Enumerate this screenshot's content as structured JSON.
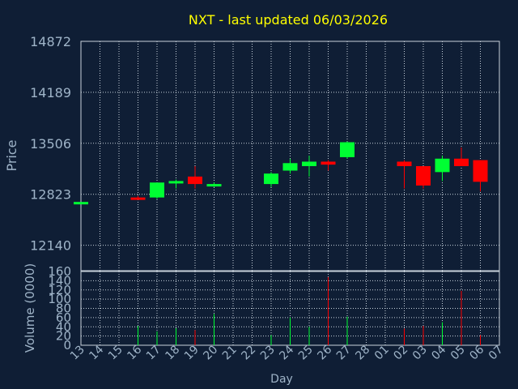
{
  "title": "NXT - last updated 06/03/2026",
  "colors": {
    "background": "#0f1e35",
    "text": "#9fb4c8",
    "title": "#ffff00",
    "grid": "#c8d2dc",
    "up": "#00ff33",
    "down": "#ff0000"
  },
  "chart_data": [
    {
      "type": "candlestick",
      "title": "NXT - last updated 06/03/2026",
      "ylabel": "Price",
      "ylim": [
        11799,
        14872
      ],
      "ytick_values": [
        12140,
        12823,
        13506,
        14189,
        14872
      ],
      "grid": true,
      "categories": [
        "13",
        "14",
        "15",
        "16",
        "17",
        "18",
        "19",
        "20",
        "21",
        "22",
        "23",
        "24",
        "25",
        "26",
        "27",
        "28",
        "01",
        "02",
        "03",
        "04",
        "05",
        "06",
        "07"
      ],
      "candles": [
        {
          "day": "13",
          "open": 12720,
          "high": 12720,
          "low": 12720,
          "close": 12720
        },
        {
          "day": "16",
          "open": 12780,
          "high": 12800,
          "low": 12760,
          "close": 12760
        },
        {
          "day": "17",
          "open": 12780,
          "high": 12980,
          "low": 12760,
          "close": 12980
        },
        {
          "day": "18",
          "open": 12980,
          "high": 13020,
          "low": 12900,
          "close": 13000
        },
        {
          "day": "19",
          "open": 13060,
          "high": 13200,
          "low": 12900,
          "close": 12960
        },
        {
          "day": "20",
          "open": 12940,
          "high": 12980,
          "low": 12920,
          "close": 12960
        },
        {
          "day": "23",
          "open": 12960,
          "high": 13120,
          "low": 12920,
          "close": 13100
        },
        {
          "day": "24",
          "open": 13140,
          "high": 13300,
          "low": 13100,
          "close": 13240
        },
        {
          "day": "25",
          "open": 13200,
          "high": 13340,
          "low": 13060,
          "close": 13260
        },
        {
          "day": "26",
          "open": 13260,
          "high": 13280,
          "low": 13140,
          "close": 13220
        },
        {
          "day": "27",
          "open": 13320,
          "high": 13530,
          "low": 13300,
          "close": 13520
        },
        {
          "day": "02",
          "open": 13260,
          "high": 13280,
          "low": 12900,
          "close": 13200
        },
        {
          "day": "03",
          "open": 13200,
          "high": 13200,
          "low": 12900,
          "close": 12940
        },
        {
          "day": "04",
          "open": 13120,
          "high": 13340,
          "low": 13000,
          "close": 13300
        },
        {
          "day": "05",
          "open": 13300,
          "high": 13450,
          "low": 13200,
          "close": 13200
        },
        {
          "day": "06",
          "open": 13280,
          "high": 13280,
          "low": 12860,
          "close": 12990
        }
      ]
    },
    {
      "type": "bar",
      "xlabel": "Day",
      "ylabel": "Volume (0000)",
      "ylim": [
        0,
        160
      ],
      "ytick_values": [
        0,
        20,
        40,
        60,
        80,
        100,
        120,
        140,
        160
      ],
      "grid": true,
      "categories": [
        "13",
        "14",
        "15",
        "16",
        "17",
        "18",
        "19",
        "20",
        "21",
        "22",
        "23",
        "24",
        "25",
        "26",
        "27",
        "28",
        "01",
        "02",
        "03",
        "04",
        "05",
        "06",
        "07"
      ],
      "bars": [
        {
          "day": "16",
          "value": 42,
          "direction": "up"
        },
        {
          "day": "17",
          "value": 30,
          "direction": "up"
        },
        {
          "day": "18",
          "value": 37,
          "direction": "up"
        },
        {
          "day": "19",
          "value": 33,
          "direction": "down"
        },
        {
          "day": "20",
          "value": 68,
          "direction": "up"
        },
        {
          "day": "23",
          "value": 22,
          "direction": "up"
        },
        {
          "day": "24",
          "value": 60,
          "direction": "up"
        },
        {
          "day": "25",
          "value": 40,
          "direction": "up"
        },
        {
          "day": "26",
          "value": 148,
          "direction": "down"
        },
        {
          "day": "27",
          "value": 62,
          "direction": "up"
        },
        {
          "day": "02",
          "value": 36,
          "direction": "down"
        },
        {
          "day": "03",
          "value": 42,
          "direction": "down"
        },
        {
          "day": "04",
          "value": 50,
          "direction": "up"
        },
        {
          "day": "05",
          "value": 118,
          "direction": "down"
        },
        {
          "day": "06",
          "value": 22,
          "direction": "down"
        }
      ]
    }
  ]
}
